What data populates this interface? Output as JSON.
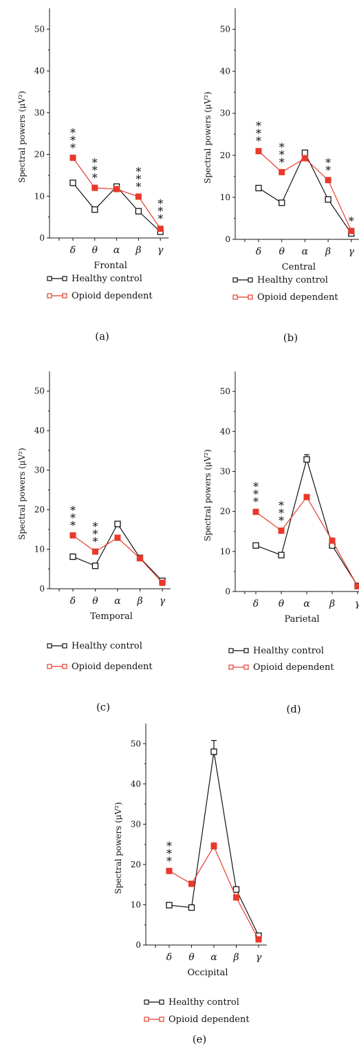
{
  "colors": {
    "healthy_control": "#111111",
    "opioid_dependent": "#e8392a"
  },
  "legend": {
    "healthy_control": "Healthy control",
    "opioid_dependent": "Opioid dependent"
  },
  "chart_data": [
    {
      "type": "line",
      "panel_label": "(a)",
      "xlabel": "Frontal",
      "ylabel": "Spectral powers (μV²)",
      "ylim": [
        0,
        55
      ],
      "yticks": [
        "0",
        "10",
        "20",
        "30",
        "40",
        "50"
      ],
      "categories": [
        "δ",
        "θ",
        "α",
        "β",
        "γ"
      ],
      "series": [
        {
          "name": "Healthy control",
          "values": [
            13.2,
            6.8,
            12.3,
            6.4,
            1.5
          ]
        },
        {
          "name": "Opioid dependent",
          "values": [
            19.2,
            12.0,
            11.7,
            9.9,
            2.2
          ]
        }
      ],
      "significance": [
        "***",
        "***",
        "",
        "***",
        "***"
      ]
    },
    {
      "type": "line",
      "panel_label": "(b)",
      "xlabel": "Central",
      "ylabel": "Spectral powers (μV²)",
      "ylim": [
        0,
        55
      ],
      "yticks": [
        "0",
        "10",
        "20",
        "30",
        "40",
        "50"
      ],
      "categories": [
        "δ",
        "θ",
        "α",
        "β",
        "γ"
      ],
      "series": [
        {
          "name": "Healthy control",
          "values": [
            12.2,
            8.7,
            20.6,
            9.5,
            1.4
          ]
        },
        {
          "name": "Opioid dependent",
          "values": [
            21.0,
            16.0,
            19.3,
            14.1,
            2.0
          ]
        }
      ],
      "significance": [
        "***",
        "***",
        "",
        "**",
        "*"
      ]
    },
    {
      "type": "line",
      "panel_label": "(c)",
      "xlabel": "Temporal",
      "ylabel": "Spectral powers (μV²)",
      "ylim": [
        0,
        55
      ],
      "yticks": [
        "0",
        "10",
        "20",
        "30",
        "40",
        "50"
      ],
      "categories": [
        "δ",
        "θ",
        "α",
        "β",
        "γ"
      ],
      "series": [
        {
          "name": "Healthy control",
          "values": [
            8.1,
            5.8,
            16.4,
            7.8,
            2.0
          ]
        },
        {
          "name": "Opioid dependent",
          "values": [
            13.5,
            9.4,
            12.9,
            7.7,
            1.5
          ]
        }
      ],
      "significance": [
        "***",
        "***",
        "",
        "",
        ""
      ]
    },
    {
      "type": "line",
      "panel_label": "(d)",
      "xlabel": "Parietal",
      "ylabel": "Spectral powers (μV²)",
      "ylim": [
        0,
        55
      ],
      "yticks": [
        "0",
        "10",
        "20",
        "30",
        "40",
        "50"
      ],
      "categories": [
        "δ",
        "θ",
        "α",
        "β",
        "γ"
      ],
      "series": [
        {
          "name": "Healthy control",
          "values": [
            11.5,
            9.1,
            33.0,
            11.5,
            1.4
          ],
          "errors": [
            0,
            0,
            1.2,
            0,
            0
          ]
        },
        {
          "name": "Opioid dependent",
          "values": [
            19.9,
            15.2,
            23.6,
            12.7,
            1.3
          ]
        }
      ],
      "significance": [
        "***",
        "***",
        "",
        "",
        ""
      ]
    },
    {
      "type": "line",
      "panel_label": "(e)",
      "xlabel": "Occipital",
      "ylabel": "Spectral powers (μV²)",
      "ylim": [
        0,
        55
      ],
      "yticks": [
        "0",
        "10",
        "20",
        "30",
        "40",
        "50"
      ],
      "categories": [
        "δ",
        "θ",
        "α",
        "β",
        "γ"
      ],
      "series": [
        {
          "name": "Healthy control",
          "values": [
            9.9,
            9.3,
            48.0,
            13.8,
            2.3
          ],
          "errors": [
            0,
            0,
            2.8,
            0,
            0
          ]
        },
        {
          "name": "Opioid dependent",
          "values": [
            18.4,
            15.2,
            24.5,
            11.8,
            1.4
          ],
          "errors": [
            0,
            0,
            0.9,
            0,
            0
          ]
        }
      ],
      "significance": [
        "***",
        "",
        "",
        "",
        ""
      ]
    }
  ]
}
